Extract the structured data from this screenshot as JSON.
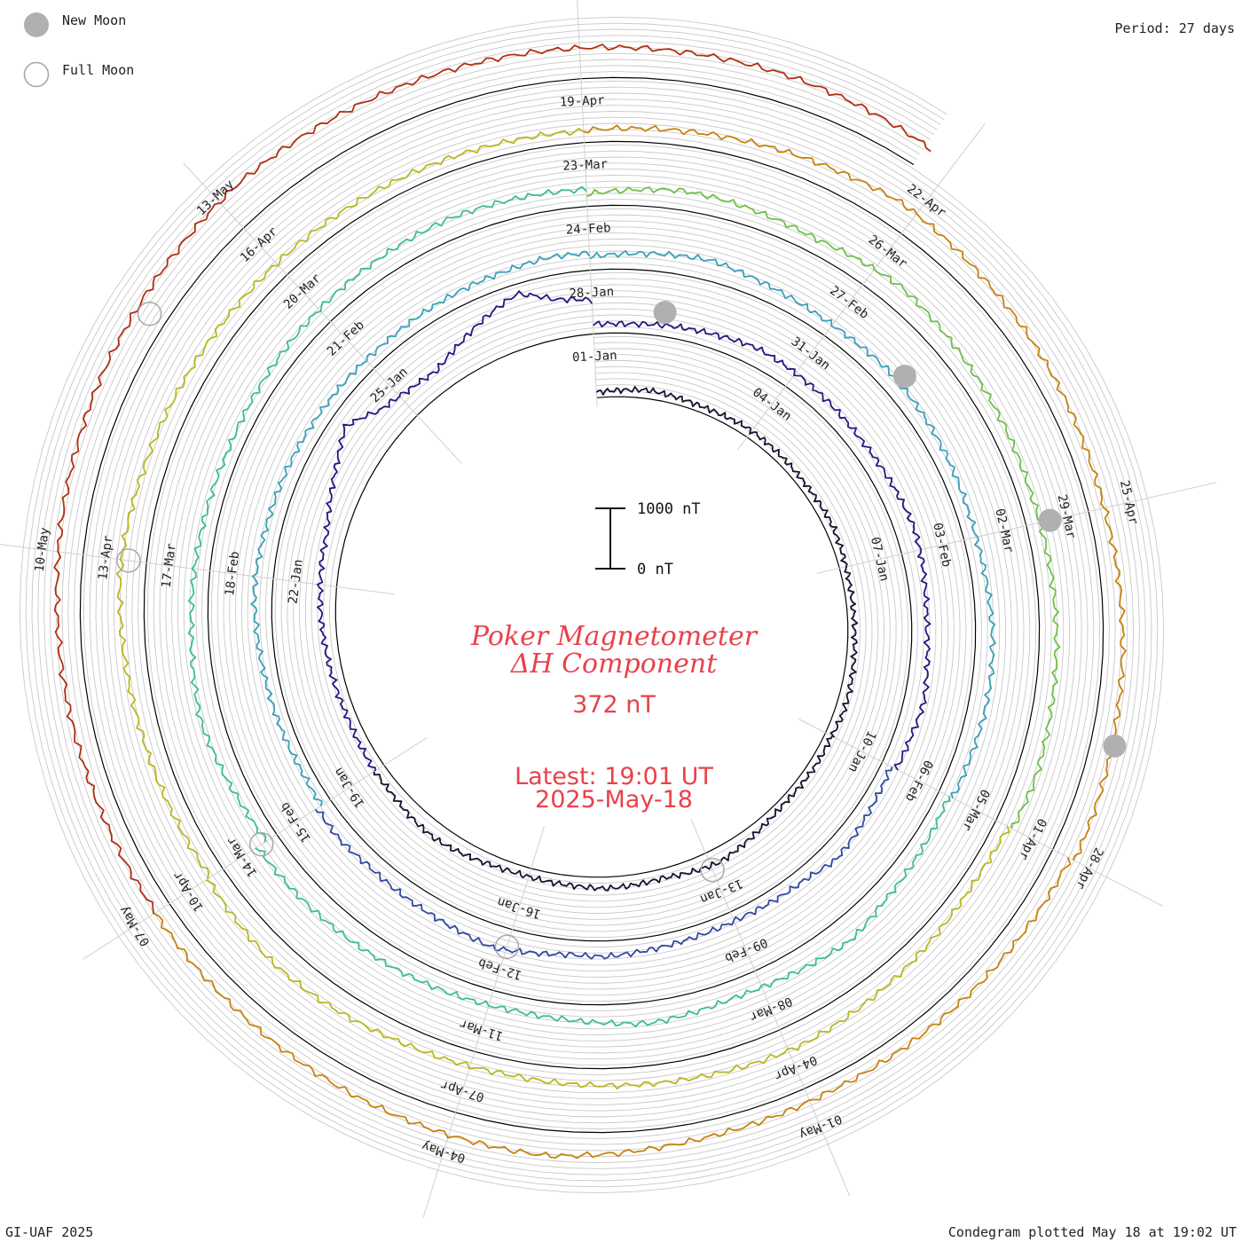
{
  "header": {
    "period_text": "Period: 27 days"
  },
  "legend": {
    "new_moon_label": "New Moon",
    "full_moon_label": "Full Moon",
    "new_moon_color": "#b0b0b0",
    "full_moon_color": "#a8a8a8"
  },
  "footer": {
    "left_text": "GI-UAF 2025",
    "right_text": "Condegram plotted May 18 at 19:02 UT"
  },
  "center": {
    "title_line1": "Poker Magnetometer",
    "title_line2": "ΔH Component",
    "current_value": "372 nT",
    "latest_label": "Latest: 19:01 UT",
    "latest_date": "2025-May-18"
  },
  "scale_bar": {
    "top_label": "1000 nT",
    "bottom_label": "0 nT"
  },
  "chart_data": {
    "type": "line",
    "title": "Poker Magnetometer ΔH Component",
    "period_days": 27,
    "layout": "spiral condegram (polar, clockwise, one turn per 27-day period)",
    "units": "nT",
    "scale_range": [
      0,
      1000
    ],
    "grid": true,
    "start_date": "2025-Jan-01",
    "end_date": "2025-May-18",
    "latest_value_nT": 372,
    "date_labels": [
      "01-Jan",
      "04-Jan",
      "07-Jan",
      "10-Jan",
      "13-Jan",
      "16-Jan",
      "19-Jan",
      "22-Jan",
      "25-Jan",
      "28-Jan",
      "31-Jan",
      "03-Feb",
      "06-Feb",
      "09-Feb",
      "12-Feb",
      "15-Feb",
      "18-Feb",
      "21-Feb",
      "24-Feb",
      "27-Feb",
      "02-Mar",
      "05-Mar",
      "08-Mar",
      "11-Mar",
      "14-Mar",
      "17-Mar",
      "20-Mar",
      "23-Mar",
      "26-Mar",
      "29-Mar",
      "01-Apr",
      "04-Apr",
      "07-Apr",
      "10-Apr",
      "13-Apr",
      "16-Apr",
      "19-Apr",
      "22-Apr",
      "25-Apr",
      "28-Apr",
      "01-May",
      "04-May",
      "07-May",
      "10-May",
      "13-May"
    ],
    "series_colors": [
      "#1a1030",
      "#1f1a80",
      "#2f4aa0",
      "#3aa0b8",
      "#3cbf8a",
      "#6ec04a",
      "#b8b820",
      "#c8820e",
      "#b03010"
    ],
    "new_moon_dates": [
      "29-Jan",
      "28-Feb",
      "29-Mar",
      "27-Apr"
    ],
    "full_moon_dates": [
      "13-Jan",
      "12-Feb",
      "14-Mar",
      "13-Apr",
      "12-May"
    ],
    "series": [
      {
        "name": "",
        "days": [
          0,
          9
        ],
        "values": [
          90,
          110,
          140,
          120,
          100,
          105,
          130,
          125,
          115,
          110,
          120,
          135,
          120,
          105,
          100,
          110,
          125,
          140,
          150,
          120
        ]
      },
      {
        "name": "",
        "days": [
          9,
          18
        ],
        "values": [
          110,
          120,
          105,
          95,
          130,
          180,
          240,
          200,
          150,
          170,
          190,
          160,
          150,
          140,
          160,
          210,
          250,
          230,
          190,
          180
        ]
      },
      {
        "name": "",
        "days": [
          18,
          27
        ],
        "values": [
          180,
          160,
          150,
          170,
          200,
          230,
          260,
          300,
          320,
          450,
          600,
          800,
          500,
          400,
          350,
          520,
          720,
          900,
          650,
          560
        ]
      },
      {
        "name": "",
        "days": [
          27,
          36
        ],
        "values": [
          160,
          150,
          180,
          210,
          250,
          300,
          280,
          260,
          240,
          230,
          250,
          280,
          320,
          300,
          260,
          250,
          290,
          330,
          280,
          260
        ]
      },
      {
        "name": "",
        "days": [
          36,
          45
        ],
        "values": [
          160,
          200,
          250,
          300,
          200,
          180,
          160,
          170,
          190,
          220,
          260,
          240,
          300,
          380,
          320,
          280,
          260,
          240,
          280,
          260
        ]
      },
      {
        "name": "",
        "days": [
          45,
          54
        ],
        "values": [
          170,
          160,
          180,
          200,
          230,
          260,
          300,
          280,
          250,
          240,
          230,
          210,
          200,
          190,
          200,
          220,
          240,
          260,
          300,
          280
        ]
      },
      {
        "name": "",
        "days": [
          54,
          63
        ],
        "values": [
          220,
          260,
          300,
          340,
          280,
          240,
          220,
          230,
          260,
          250,
          240,
          220,
          200,
          210,
          240,
          280,
          300,
          290,
          260,
          250
        ]
      },
      {
        "name": "",
        "days": [
          63,
          72
        ],
        "values": [
          180,
          220,
          260,
          300,
          400,
          350,
          300,
          280,
          320,
          360,
          300,
          260,
          240,
          260,
          280,
          300,
          320,
          340,
          360,
          380
        ]
      },
      {
        "name": "",
        "days": [
          72,
          81
        ],
        "values": [
          200,
          240,
          300,
          360,
          320,
          280,
          260,
          240,
          220,
          200,
          220,
          240,
          260,
          280,
          300,
          320,
          340,
          320,
          300,
          280
        ]
      },
      {
        "name": "",
        "days": [
          81,
          90
        ],
        "values": [
          200,
          260,
          320,
          300,
          260,
          240,
          300,
          360,
          320,
          280,
          260,
          240,
          220,
          240,
          260,
          280,
          300,
          320,
          340,
          300
        ]
      },
      {
        "name": "",
        "days": [
          90,
          99
        ],
        "values": [
          230,
          200,
          220,
          260,
          300,
          340,
          380,
          360,
          330,
          300,
          280,
          260,
          240,
          260,
          280,
          320,
          360,
          380,
          340,
          300
        ]
      },
      {
        "name": "",
        "days": [
          99,
          108
        ],
        "values": [
          250,
          260,
          280,
          300,
          340,
          380,
          420,
          400,
          360,
          330,
          300,
          280,
          260,
          250,
          240,
          230,
          220,
          210,
          200,
          190
        ]
      },
      {
        "name": "",
        "days": [
          108,
          117
        ],
        "values": [
          200,
          220,
          250,
          280,
          320,
          360,
          420,
          380,
          340,
          320,
          300,
          280,
          260,
          270,
          300,
          320,
          340,
          360,
          380,
          400
        ]
      },
      {
        "name": "",
        "days": [
          117,
          126
        ],
        "values": [
          320,
          300,
          280,
          260,
          240,
          230,
          220,
          240,
          260,
          300,
          360,
          420,
          400,
          380,
          360,
          340,
          320,
          300,
          290,
          280
        ]
      },
      {
        "name": "",
        "days": [
          126,
          137.8
        ],
        "values": [
          260,
          280,
          300,
          340,
          380,
          420,
          460,
          500,
          520,
          560,
          600,
          580,
          560,
          540,
          520,
          500,
          480,
          460,
          420,
          372
        ]
      }
    ]
  }
}
